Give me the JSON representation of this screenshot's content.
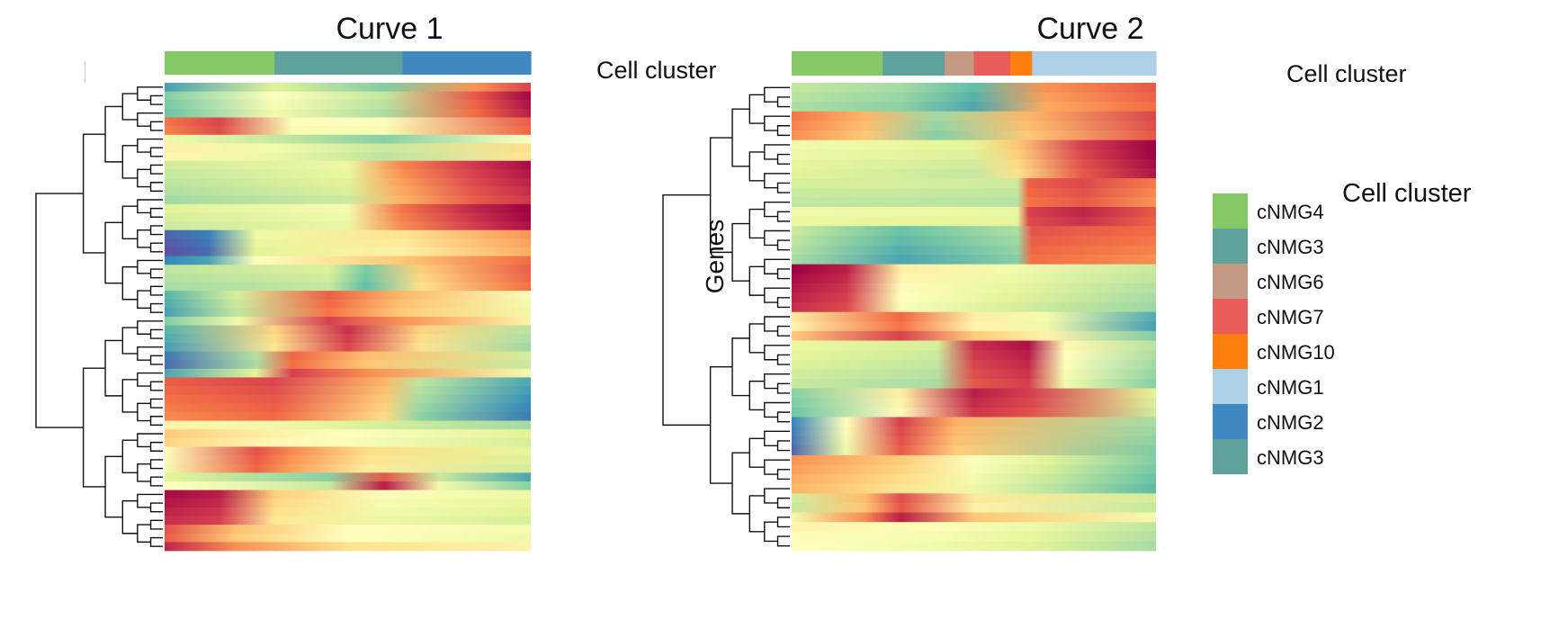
{
  "figure": {
    "genes_label": "Genes",
    "cluster_bar_label": "Cell cluster"
  },
  "colors": {
    "cNMG4": "#86c866",
    "cNMG3": "#5fa29c",
    "cNMG6": "#c59a85",
    "cNMG7": "#e85c5a",
    "cNMG10": "#ff7f0e",
    "cNMG1": "#aed0e6",
    "cNMG2": "#3f88c2",
    "colormap": [
      "#5e4fa2",
      "#3288bd",
      "#66c2a5",
      "#abdda4",
      "#e6f598",
      "#ffffbf",
      "#fee08b",
      "#fdae61",
      "#f46d43",
      "#d53e4f",
      "#9e0142"
    ]
  },
  "legend": {
    "title": "Cell cluster",
    "items": [
      {
        "label": "cNMG4",
        "color": "#86c866"
      },
      {
        "label": "cNMG3",
        "color": "#5fa29c"
      },
      {
        "label": "cNMG6",
        "color": "#c59a85"
      },
      {
        "label": "cNMG7",
        "color": "#e85c5a"
      },
      {
        "label": "cNMG10",
        "color": "#ff7f0e"
      },
      {
        "label": "cNMG1",
        "color": "#aed0e6"
      },
      {
        "label": "cNMG2",
        "color": "#3f88c2"
      },
      {
        "label": "cNMG3",
        "color": "#5fa29c"
      }
    ]
  },
  "chart_data": [
    {
      "type": "heatmap",
      "title": "Curve 1",
      "ylabel": "",
      "row_clustering": "dendrogram (hierarchical)",
      "color_scale": "Spectral (blue = low, red = high)",
      "cluster_bar": [
        {
          "cluster": "cNMG4",
          "start": 0.0,
          "end": 0.3
        },
        {
          "cluster": "cNMG3",
          "start": 0.3,
          "end": 0.65
        },
        {
          "cluster": "cNMG2",
          "start": 0.65,
          "end": 1.0
        }
      ],
      "row_blocks": [
        {
          "rows": 4,
          "profile": [
            [
              0,
              0.2
            ],
            [
              0.3,
              0.45
            ],
            [
              0.6,
              0.3
            ],
            [
              0.85,
              0.8
            ],
            [
              1,
              0.95
            ]
          ]
        },
        {
          "rows": 2,
          "profile": [
            [
              0,
              0.8
            ],
            [
              0.15,
              0.9
            ],
            [
              0.35,
              0.5
            ],
            [
              0.6,
              0.5
            ],
            [
              1,
              0.85
            ]
          ]
        },
        {
          "rows": 3,
          "profile": [
            [
              0,
              0.5
            ],
            [
              0.3,
              0.4
            ],
            [
              0.6,
              0.3
            ],
            [
              1,
              0.55
            ]
          ]
        },
        {
          "rows": 8,
          "profile": [
            [
              0,
              0.35
            ],
            [
              0.5,
              0.42
            ],
            [
              0.65,
              0.75
            ],
            [
              0.85,
              0.9
            ],
            [
              1,
              0.97
            ]
          ]
        },
        {
          "rows": 4,
          "profile": [
            [
              0,
              0.05
            ],
            [
              0.12,
              0.1
            ],
            [
              0.25,
              0.45
            ],
            [
              0.65,
              0.6
            ],
            [
              1,
              0.75
            ]
          ]
        },
        {
          "rows": 3,
          "profile": [
            [
              0,
              0.3
            ],
            [
              0.45,
              0.35
            ],
            [
              0.55,
              0.2
            ],
            [
              0.7,
              0.6
            ],
            [
              1,
              0.8
            ]
          ]
        },
        {
          "rows": 4,
          "profile": [
            [
              0,
              0.2
            ],
            [
              0.2,
              0.4
            ],
            [
              0.45,
              0.85
            ],
            [
              0.65,
              0.7
            ],
            [
              1,
              0.5
            ]
          ]
        },
        {
          "rows": 3,
          "profile": [
            [
              0,
              0.15
            ],
            [
              0.3,
              0.6
            ],
            [
              0.5,
              0.9
            ],
            [
              0.7,
              0.6
            ],
            [
              1,
              0.3
            ]
          ]
        },
        {
          "rows": 3,
          "profile": [
            [
              0,
              0.1
            ],
            [
              0.25,
              0.35
            ],
            [
              0.35,
              0.85
            ],
            [
              0.55,
              0.7
            ],
            [
              1,
              0.4
            ]
          ]
        },
        {
          "rows": 5,
          "profile": [
            [
              0,
              0.8
            ],
            [
              0.3,
              0.85
            ],
            [
              0.6,
              0.65
            ],
            [
              0.7,
              0.3
            ],
            [
              1,
              0.12
            ]
          ]
        },
        {
          "rows": 3,
          "profile": [
            [
              0,
              0.6
            ],
            [
              0.3,
              0.5
            ],
            [
              0.5,
              0.45
            ],
            [
              1,
              0.35
            ]
          ]
        },
        {
          "rows": 3,
          "profile": [
            [
              0,
              0.5
            ],
            [
              0.25,
              0.85
            ],
            [
              0.35,
              0.75
            ],
            [
              0.55,
              0.6
            ],
            [
              1,
              0.4
            ]
          ]
        },
        {
          "rows": 2,
          "profile": [
            [
              0,
              0.45
            ],
            [
              0.45,
              0.3
            ],
            [
              0.6,
              0.9
            ],
            [
              0.75,
              0.4
            ],
            [
              1,
              0.2
            ]
          ]
        },
        {
          "rows": 4,
          "profile": [
            [
              0,
              0.95
            ],
            [
              0.15,
              0.92
            ],
            [
              0.3,
              0.6
            ],
            [
              0.6,
              0.45
            ],
            [
              1,
              0.4
            ]
          ]
        },
        {
          "rows": 3,
          "profile": [
            [
              0,
              0.9
            ],
            [
              0.2,
              0.7
            ],
            [
              0.5,
              0.55
            ],
            [
              1,
              0.5
            ]
          ]
        }
      ]
    },
    {
      "type": "heatmap",
      "title": "Curve 2",
      "ylabel": "Genes",
      "row_clustering": "dendrogram (hierarchical)",
      "color_scale": "Spectral (blue = low, red = high)",
      "cluster_bar": [
        {
          "cluster": "cNMG4",
          "start": 0.0,
          "end": 0.25
        },
        {
          "cluster": "cNMG3",
          "start": 0.25,
          "end": 0.42
        },
        {
          "cluster": "cNMG6",
          "start": 0.42,
          "end": 0.5
        },
        {
          "cluster": "cNMG7",
          "start": 0.5,
          "end": 0.6
        },
        {
          "cluster": "cNMG10",
          "start": 0.6,
          "end": 0.66
        },
        {
          "cluster": "cNMG1",
          "start": 0.66,
          "end": 1.0
        }
      ],
      "row_blocks": [
        {
          "rows": 3,
          "profile": [
            [
              0,
              0.3
            ],
            [
              0.3,
              0.25
            ],
            [
              0.5,
              0.15
            ],
            [
              0.7,
              0.7
            ],
            [
              1,
              0.8
            ]
          ]
        },
        {
          "rows": 3,
          "profile": [
            [
              0,
              0.8
            ],
            [
              0.2,
              0.7
            ],
            [
              0.4,
              0.3
            ],
            [
              0.65,
              0.7
            ],
            [
              1,
              0.9
            ]
          ]
        },
        {
          "rows": 4,
          "profile": [
            [
              0,
              0.4
            ],
            [
              0.5,
              0.35
            ],
            [
              0.62,
              0.6
            ],
            [
              0.8,
              0.85
            ],
            [
              1,
              0.97
            ]
          ]
        },
        {
          "rows": 5,
          "profile": [
            [
              0,
              0.4
            ],
            [
              0.62,
              0.38
            ],
            [
              0.65,
              0.85
            ],
            [
              0.8,
              0.9
            ],
            [
              1,
              0.8
            ]
          ]
        },
        {
          "rows": 4,
          "profile": [
            [
              0,
              0.35
            ],
            [
              0.3,
              0.2
            ],
            [
              0.62,
              0.3
            ],
            [
              0.66,
              0.85
            ],
            [
              1,
              0.8
            ]
          ]
        },
        {
          "rows": 5,
          "profile": [
            [
              0,
              0.95
            ],
            [
              0.15,
              0.9
            ],
            [
              0.3,
              0.5
            ],
            [
              0.6,
              0.4
            ],
            [
              1,
              0.3
            ]
          ]
        },
        {
          "rows": 3,
          "profile": [
            [
              0,
              0.6
            ],
            [
              0.3,
              0.85
            ],
            [
              0.5,
              0.6
            ],
            [
              0.7,
              0.5
            ],
            [
              1,
              0.2
            ]
          ]
        },
        {
          "rows": 5,
          "profile": [
            [
              0,
              0.4
            ],
            [
              0.4,
              0.35
            ],
            [
              0.5,
              0.9
            ],
            [
              0.65,
              0.95
            ],
            [
              0.75,
              0.5
            ],
            [
              1,
              0.3
            ]
          ]
        },
        {
          "rows": 3,
          "profile": [
            [
              0,
              0.2
            ],
            [
              0.3,
              0.5
            ],
            [
              0.5,
              0.9
            ],
            [
              0.65,
              0.85
            ],
            [
              1,
              0.35
            ]
          ]
        },
        {
          "rows": 4,
          "profile": [
            [
              0,
              0.1
            ],
            [
              0.15,
              0.5
            ],
            [
              0.3,
              0.9
            ],
            [
              0.45,
              0.7
            ],
            [
              1,
              0.3
            ]
          ]
        },
        {
          "rows": 4,
          "profile": [
            [
              0,
              0.7
            ],
            [
              0.3,
              0.6
            ],
            [
              0.5,
              0.45
            ],
            [
              0.7,
              0.35
            ],
            [
              1,
              0.2
            ]
          ]
        },
        {
          "rows": 3,
          "profile": [
            [
              0,
              0.4
            ],
            [
              0.2,
              0.7
            ],
            [
              0.3,
              0.9
            ],
            [
              0.5,
              0.6
            ],
            [
              1,
              0.4
            ]
          ]
        },
        {
          "rows": 3,
          "profile": [
            [
              0,
              0.5
            ],
            [
              0.4,
              0.45
            ],
            [
              0.66,
              0.4
            ],
            [
              1,
              0.3
            ]
          ]
        }
      ]
    }
  ]
}
